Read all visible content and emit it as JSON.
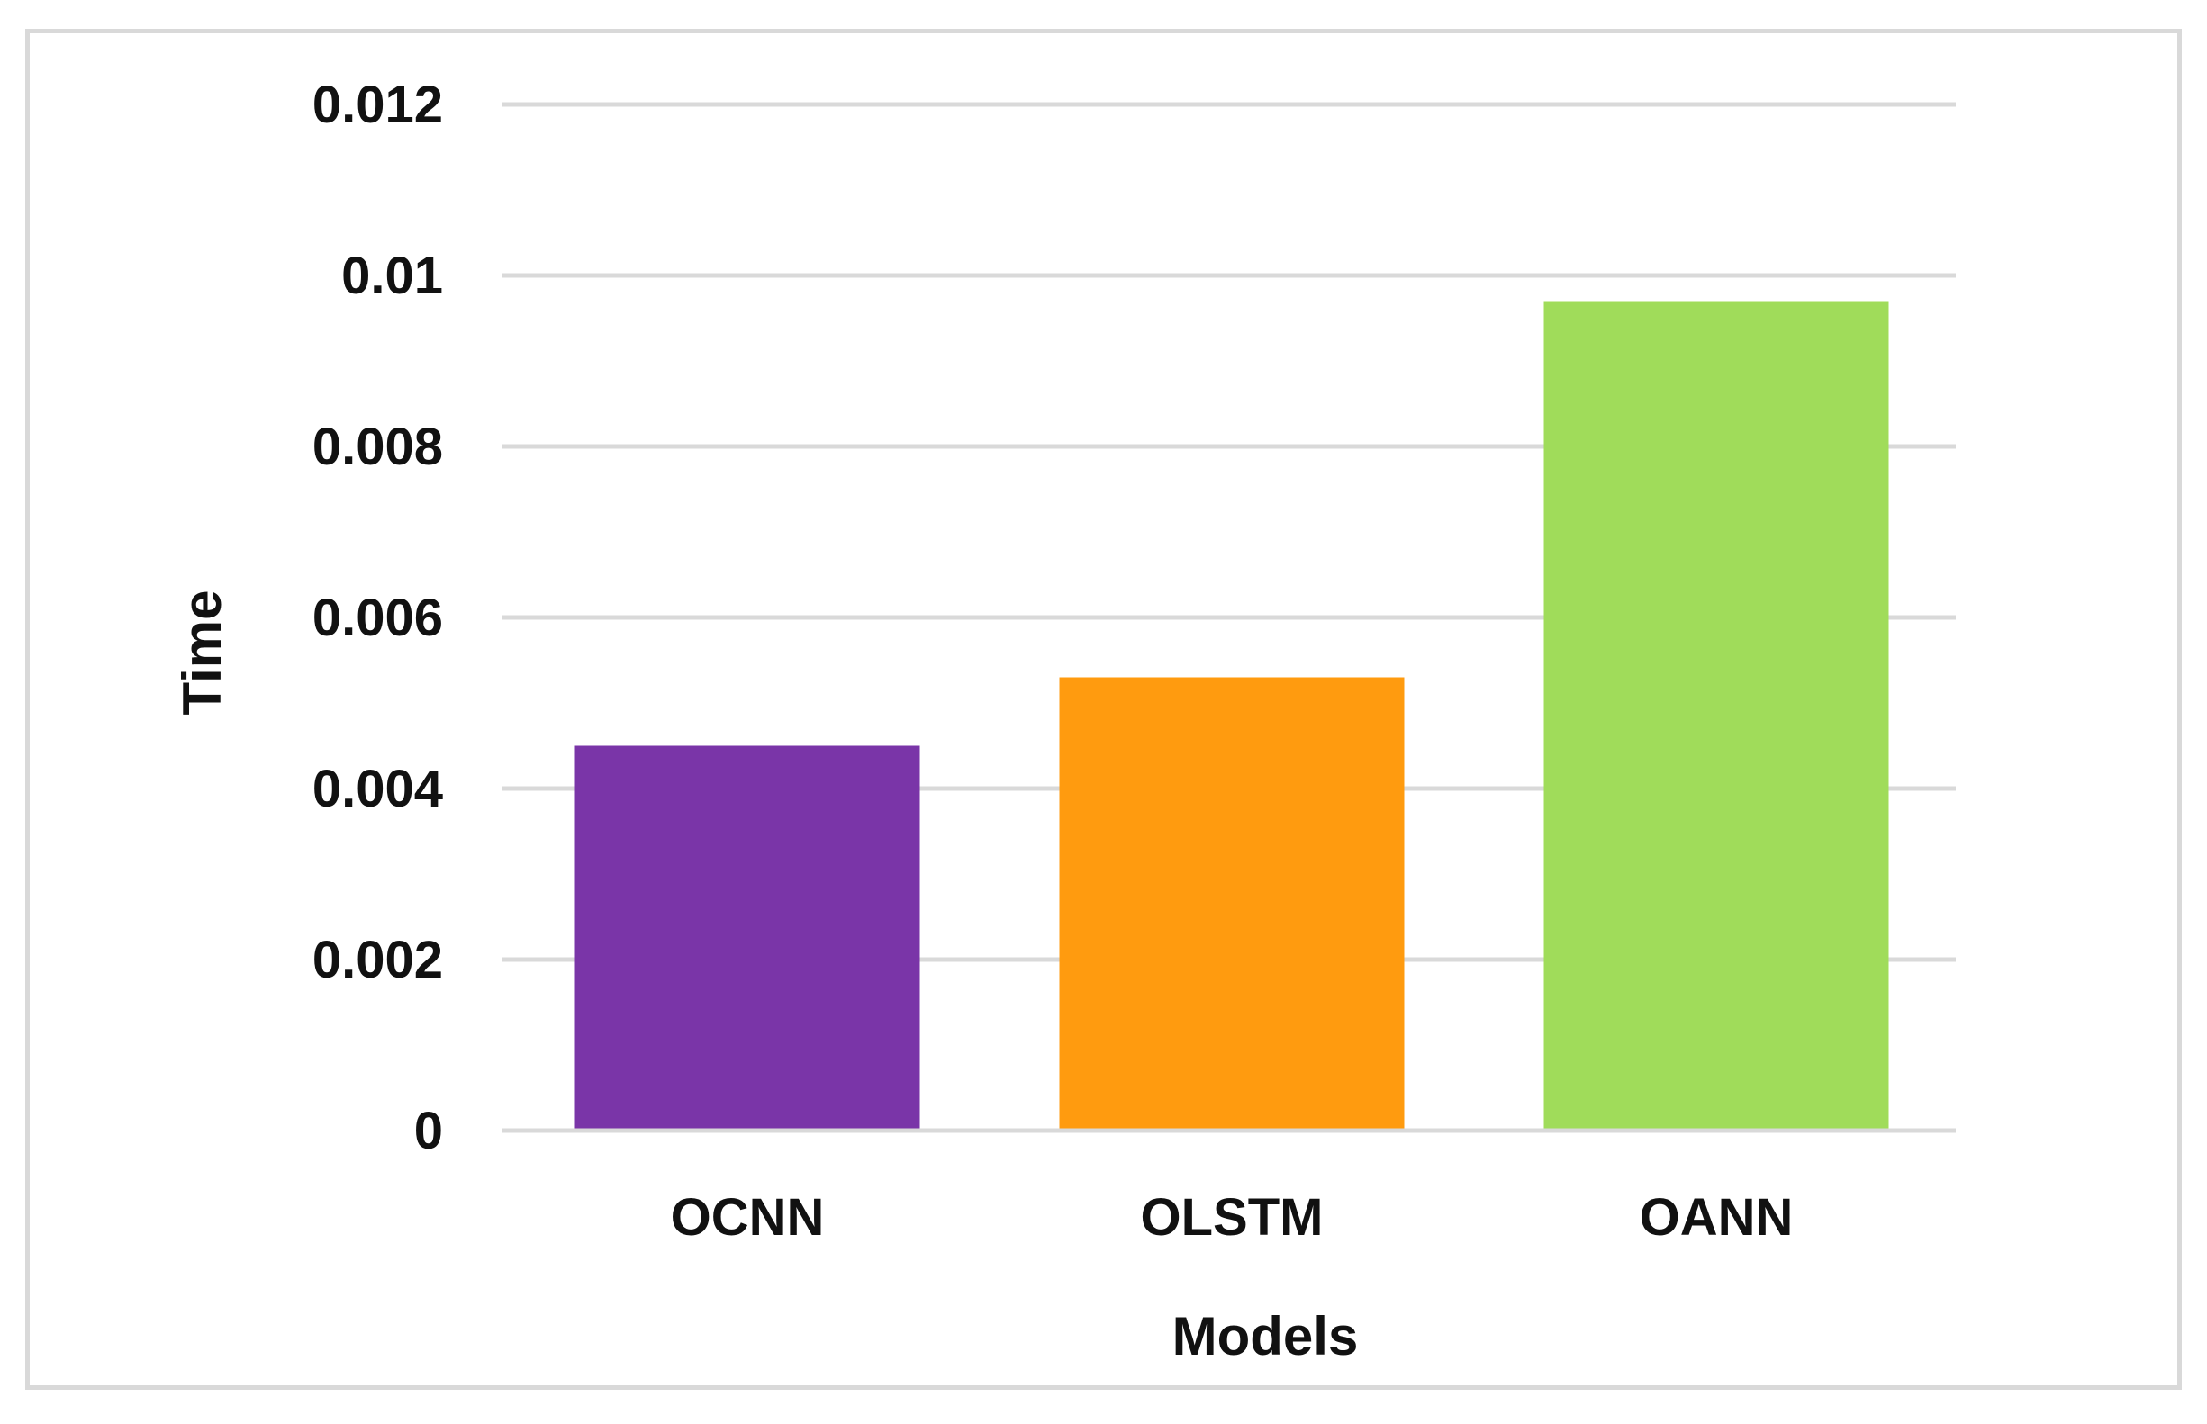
{
  "chart_data": {
    "type": "bar",
    "title": "",
    "xlabel": "Models",
    "ylabel": "Time",
    "categories": [
      "OCNN",
      "OLSTM",
      "OANN"
    ],
    "values": [
      0.0045,
      0.0053,
      0.0097
    ],
    "colors": [
      "#7a35a8",
      "#ff9b0f",
      "#a0dc5a"
    ],
    "ylim": [
      0,
      0.012
    ],
    "yticks": [
      0,
      0.002,
      0.004,
      0.006,
      0.008,
      0.01,
      0.012
    ],
    "ytick_labels": [
      "0",
      "0.002",
      "0.004",
      "0.006",
      "0.008",
      "0.01",
      "0.012"
    ],
    "grid": true,
    "gridline_color": "#d9d9d9",
    "legend": "none"
  }
}
